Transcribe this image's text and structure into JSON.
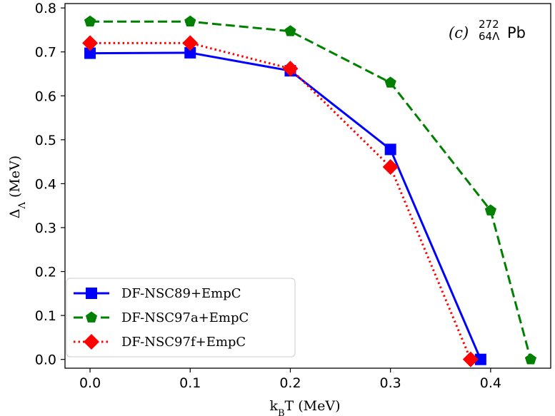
{
  "chart_data": {
    "type": "line",
    "xlabel": "k",
    "xlabel_sub": "B",
    "xlabel_rest": "T (MeV)",
    "ylabel": "Δ",
    "ylabel_sub": "Λ",
    "ylabel_rest": " (MeV)",
    "xlim": [
      -0.025,
      0.46
    ],
    "ylim": [
      -0.02,
      0.81
    ],
    "xticks": [
      "0.0",
      "0.1",
      "0.2",
      "0.3",
      "0.4"
    ],
    "yticks": [
      "0.0",
      "0.1",
      "0.2",
      "0.3",
      "0.4",
      "0.5",
      "0.6",
      "0.7",
      "0.8"
    ],
    "annotation": {
      "panel": "(c)",
      "mass": "272",
      "charge": "64Λ",
      "element": "Pb"
    },
    "legend_position": "lower-left",
    "series": [
      {
        "name": "DF-NSC89+EmpC",
        "color": "#0000ff",
        "marker": "square",
        "linestyle": "solid",
        "x": [
          0.0,
          0.1,
          0.2,
          0.3,
          0.39
        ],
        "values": [
          0.697,
          0.698,
          0.657,
          0.478,
          0.0
        ]
      },
      {
        "name": "DF-NSC97a+EmpC",
        "color": "#008000",
        "marker": "pentagon",
        "linestyle": "dashed",
        "x": [
          0.0,
          0.1,
          0.2,
          0.3,
          0.4,
          0.44
        ],
        "values": [
          0.769,
          0.769,
          0.747,
          0.63,
          0.339,
          0.0
        ]
      },
      {
        "name": "DF-NSC97f+EmpC",
        "color": "#ff0000",
        "marker": "diamond",
        "linestyle": "dotted",
        "x": [
          0.0,
          0.1,
          0.2,
          0.3,
          0.38
        ],
        "values": [
          0.72,
          0.72,
          0.662,
          0.438,
          0.0
        ]
      }
    ]
  }
}
